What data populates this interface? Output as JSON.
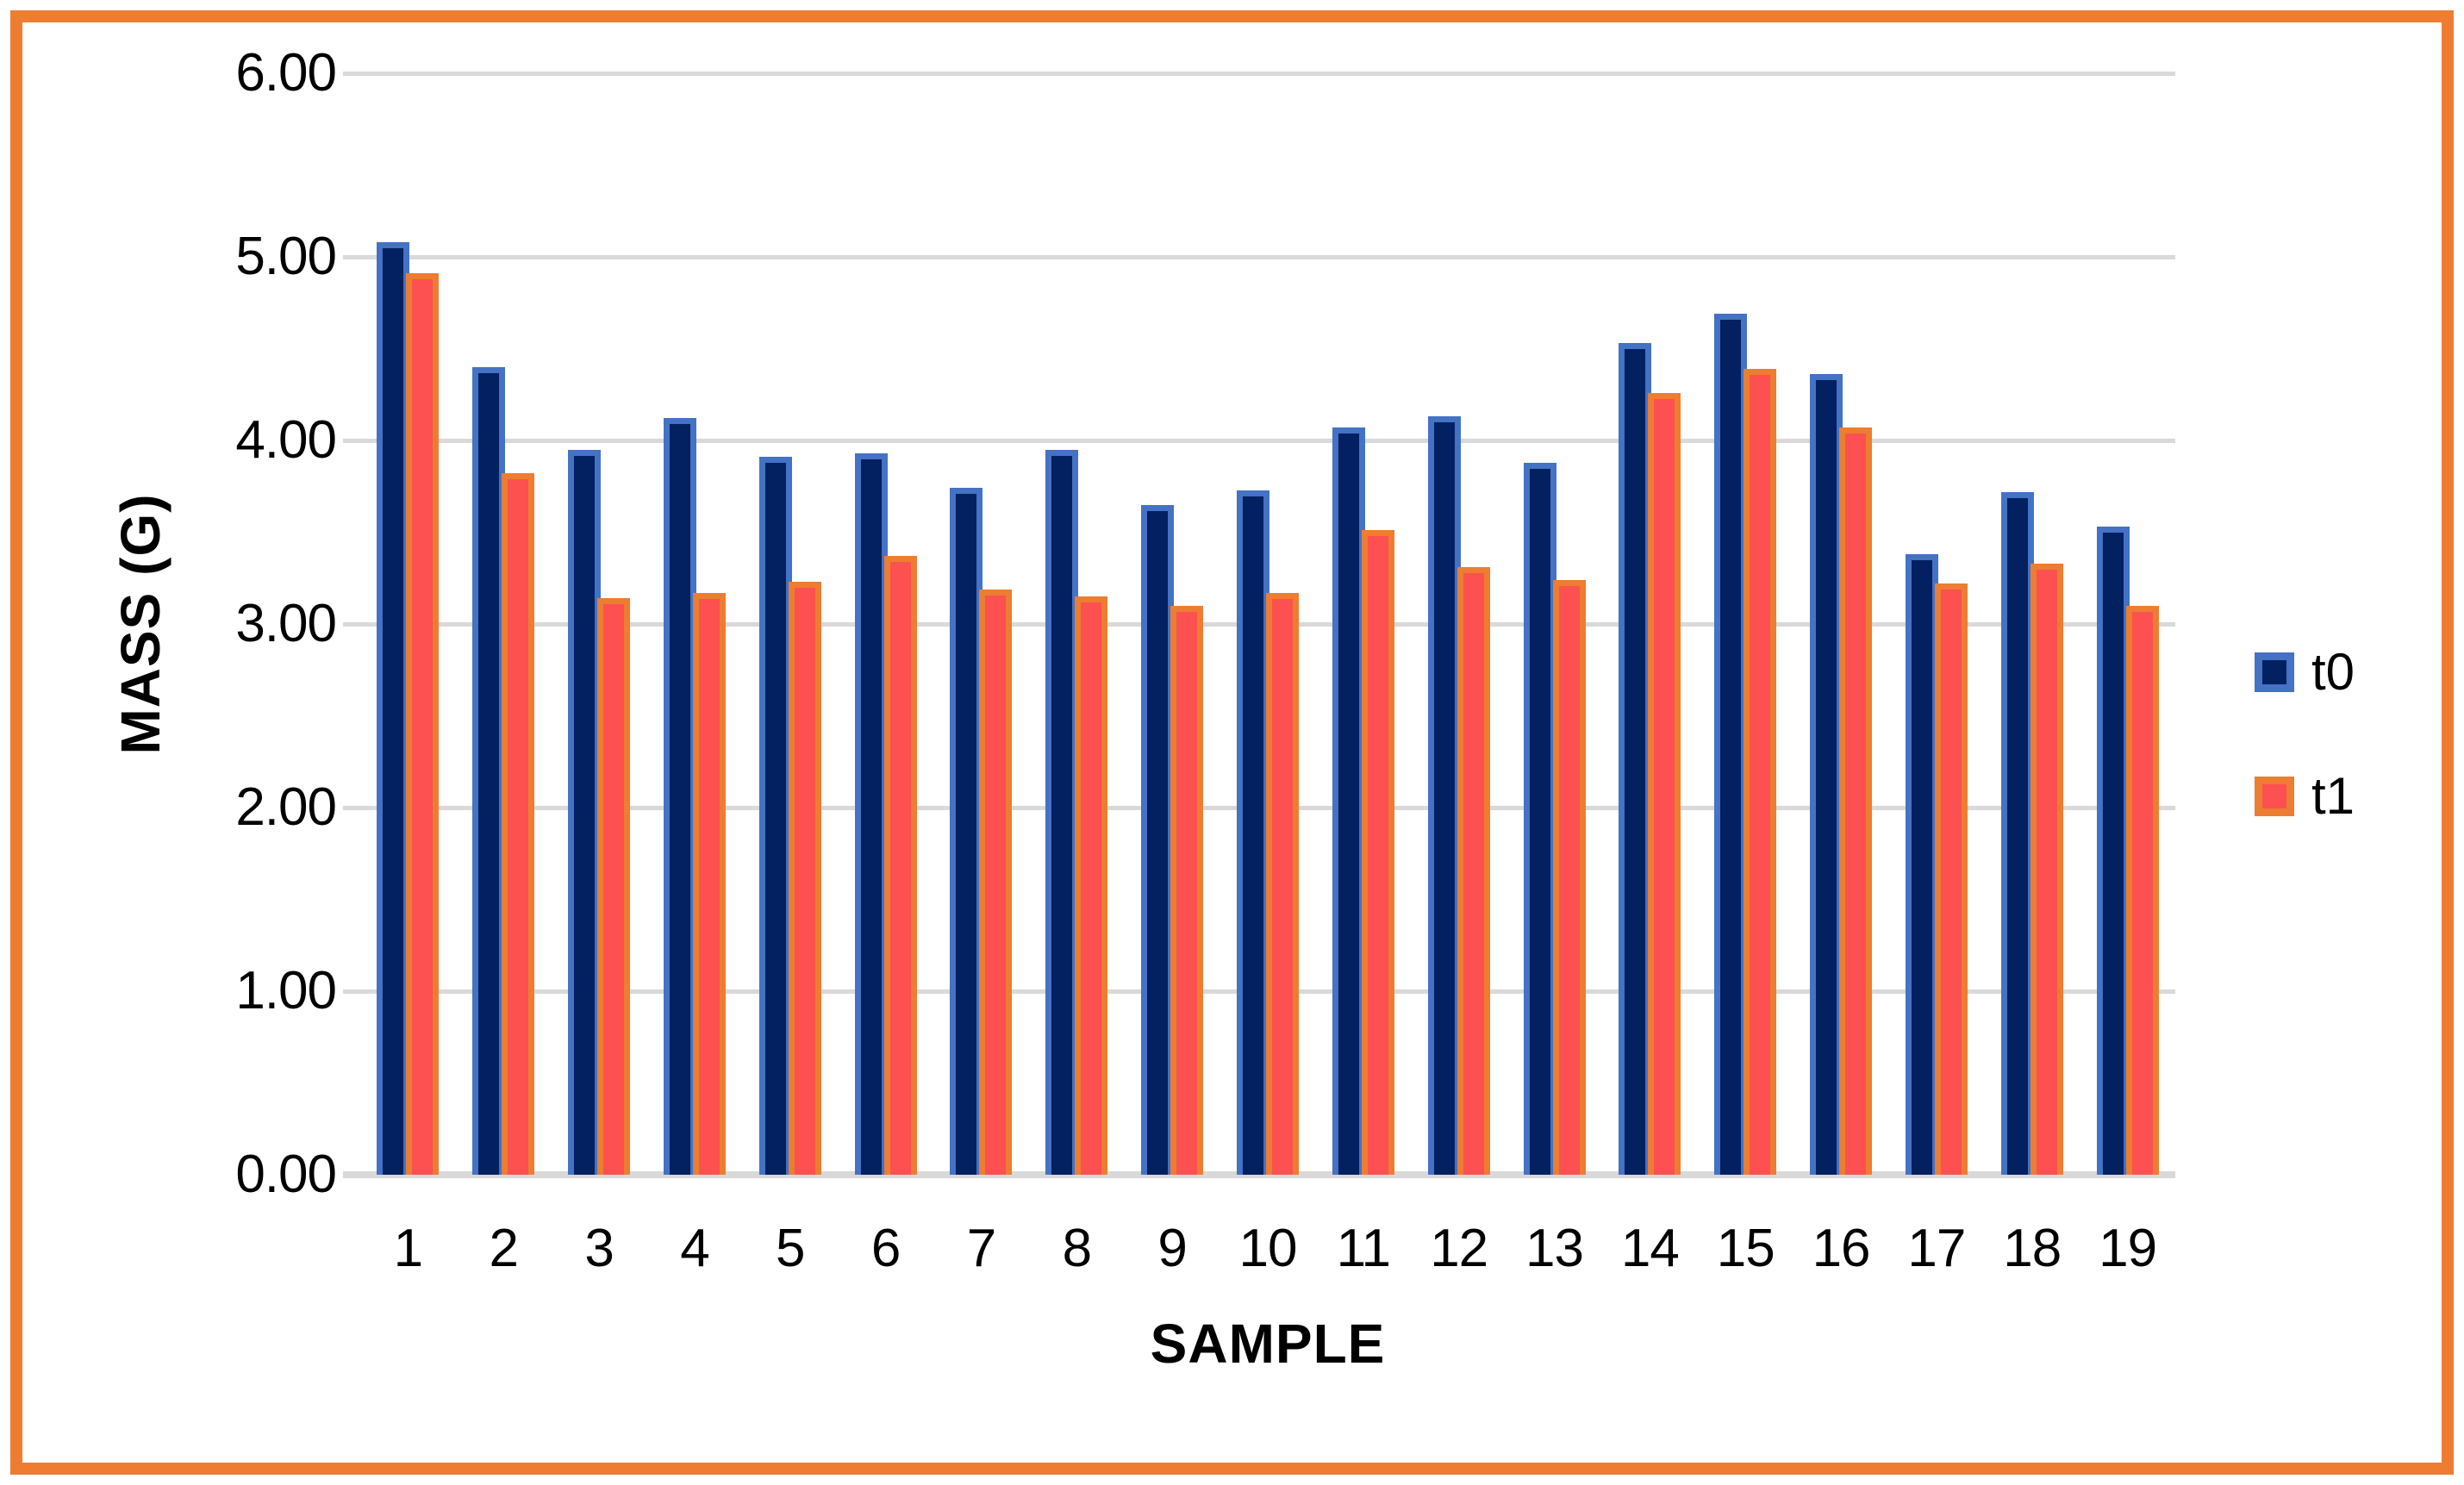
{
  "frame": {
    "border_color": "#EE7D31",
    "background": "#FFFFFF"
  },
  "chart_data": {
    "type": "bar",
    "title": "",
    "xlabel": "SAMPLE",
    "ylabel": "MASS (G)",
    "categories": [
      "1",
      "2",
      "3",
      "4",
      "5",
      "6",
      "7",
      "8",
      "9",
      "10",
      "11",
      "12",
      "13",
      "14",
      "15",
      "16",
      "17",
      "18",
      "19"
    ],
    "series": [
      {
        "name": "t0",
        "fill": "#032060",
        "border": "#4472C4",
        "values": [
          5.08,
          4.4,
          3.95,
          4.12,
          3.91,
          3.93,
          3.74,
          3.95,
          3.65,
          3.73,
          4.07,
          4.13,
          3.88,
          4.53,
          4.69,
          4.36,
          3.38,
          3.72,
          3.53
        ]
      },
      {
        "name": "t1",
        "fill": "#FD5050",
        "border": "#ED7D31",
        "values": [
          4.91,
          3.82,
          3.14,
          3.17,
          3.23,
          3.37,
          3.19,
          3.15,
          3.1,
          3.17,
          3.51,
          3.31,
          3.24,
          4.26,
          4.39,
          4.07,
          3.22,
          3.33,
          3.1
        ]
      }
    ],
    "ylim": [
      0,
      6
    ],
    "yticks": [
      0,
      1,
      2,
      3,
      4,
      5,
      6
    ],
    "ytick_labels": [
      "0.00",
      "1.00",
      "2.00",
      "3.00",
      "4.00",
      "5.00",
      "6.00"
    ],
    "grid": true,
    "gridline_color": "#D9D9D9",
    "axis_line_color": "#D9D9D9",
    "legend_position": "right",
    "legend_labels": [
      "t0",
      "t1"
    ]
  }
}
